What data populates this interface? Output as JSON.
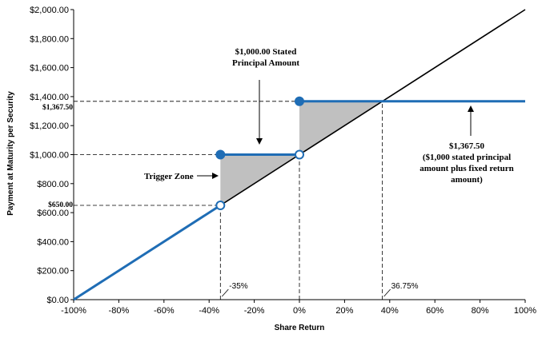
{
  "chart_data": {
    "type": "line",
    "xlabel": "Share Return",
    "ylabel": "Payment at Maturity per Security",
    "xlim": [
      -100,
      100
    ],
    "ylim": [
      0,
      2000
    ],
    "x_ticks": [
      "-100%",
      "-80%",
      "-60%",
      "-40%",
      "-20%",
      "0%",
      "20%",
      "40%",
      "60%",
      "80%",
      "100%"
    ],
    "x_tick_values": [
      -100,
      -80,
      -60,
      -40,
      -20,
      0,
      20,
      40,
      60,
      80,
      100
    ],
    "y_ticks": [
      "$0.00",
      "$200.00",
      "$400.00",
      "$600.00",
      "$800.00",
      "$1,000.00",
      "$1,200.00",
      "$1,400.00",
      "$1,600.00",
      "$1,800.00",
      "$2,000.00"
    ],
    "y_tick_values": [
      0,
      200,
      400,
      600,
      800,
      1000,
      1200,
      1400,
      1600,
      1800,
      2000
    ],
    "colors": {
      "payoff": "#1f6db5",
      "reference": "#000000",
      "shade": "#c0c0c0",
      "guides": "#000000"
    },
    "series": [
      {
        "values": [
          {
            "x": -100,
            "y": 0
          },
          {
            "x": 100,
            "y": 2000
          }
        ]
      },
      {
        "values": [
          {
            "x": -100,
            "y": 0
          },
          {
            "x": -35,
            "y": 650
          }
        ]
      },
      {
        "values": [
          {
            "x": -35,
            "y": 1000
          },
          {
            "x": 0,
            "y": 1000
          }
        ]
      },
      {
        "values": [
          {
            "x": 0,
            "y": 1367.5
          },
          {
            "x": 100,
            "y": 1367.5
          }
        ]
      }
    ],
    "points": [
      {
        "x": -35,
        "y": 650,
        "filled": false
      },
      {
        "x": -35,
        "y": 1000,
        "filled": true
      },
      {
        "x": 0,
        "y": 1000,
        "filled": false
      },
      {
        "x": 0,
        "y": 1367.5,
        "filled": true
      }
    ],
    "shaded_regions": [
      [
        {
          "x": -35,
          "y": 650
        },
        {
          "x": -35,
          "y": 1000
        },
        {
          "x": 0,
          "y": 1000
        }
      ],
      [
        {
          "x": 0,
          "y": 1000
        },
        {
          "x": 0,
          "y": 1367.5
        },
        {
          "x": 36.75,
          "y": 1367.5
        }
      ]
    ],
    "guides": [
      {
        "type": "h",
        "y": 650,
        "x_to": -35
      },
      {
        "type": "h",
        "y": 1000,
        "x_to": -35
      },
      {
        "type": "h",
        "y": 1367.5,
        "x_to": 0
      },
      {
        "type": "v",
        "x": -35,
        "y_to": 650
      },
      {
        "type": "v",
        "x": 0,
        "y_to": 1000
      },
      {
        "type": "v",
        "x": 36.75,
        "y_to": 1367.5
      }
    ],
    "y_value_labels": [
      {
        "text": "$1,367.50",
        "y": 1367.5
      },
      {
        "text": "$650.00",
        "y": 650
      }
    ],
    "x_value_labels": [
      {
        "text": "-35%",
        "x": -35
      },
      {
        "text": "36.75%",
        "x": 36.75
      }
    ],
    "annotations": {
      "principal_line1": "$1,000.00 Stated",
      "principal_line2": "Principal Amount",
      "trigger": "Trigger Zone",
      "right_line1": "$1,367.50",
      "right_line2": "($1,000 stated principal",
      "right_line3": "amount plus fixed return",
      "right_line4": "amount)"
    }
  }
}
